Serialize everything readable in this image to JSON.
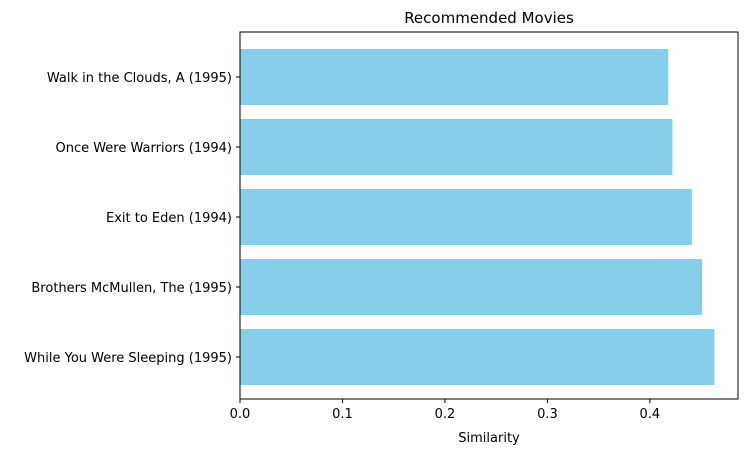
{
  "chart_data": {
    "type": "bar",
    "orientation": "horizontal",
    "title": "Recommended Movies",
    "xlabel": "Similarity",
    "ylabel": "",
    "categories": [
      "While You Were Sleeping (1995)",
      "Brothers McMullen, The (1995)",
      "Exit to Eden (1994)",
      "Once Were Warriors (1994)",
      "Walk in the Clouds, A (1995)"
    ],
    "values": [
      0.463,
      0.451,
      0.441,
      0.422,
      0.418
    ],
    "xlim": [
      0,
      0.486
    ],
    "xticks": [
      "0.0",
      "0.1",
      "0.2",
      "0.3",
      "0.4"
    ],
    "grid": false,
    "bar_color": "#87ceeb"
  }
}
